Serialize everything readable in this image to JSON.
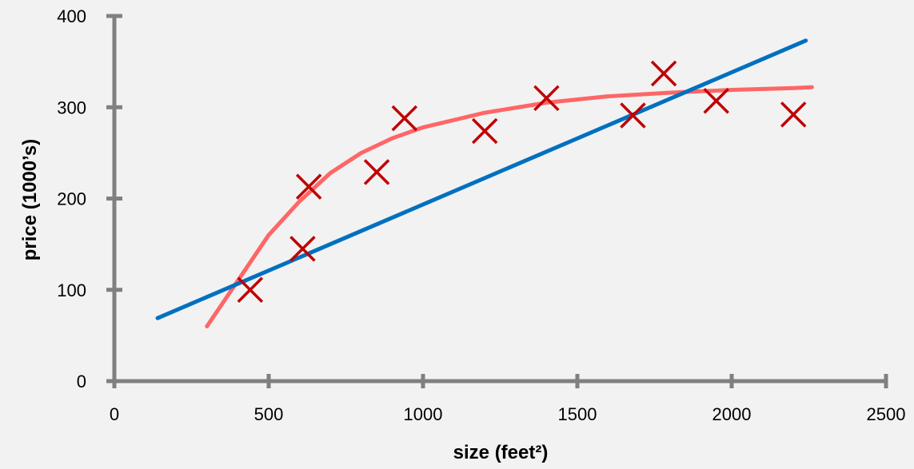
{
  "chart_data": {
    "type": "scatter",
    "title": "",
    "xlabel": "size (feet²)",
    "ylabel": "price (1000’s)",
    "xlim": [
      0,
      2500
    ],
    "ylim": [
      0,
      400
    ],
    "x_ticks": [
      "0",
      "500",
      "1000",
      "1500",
      "2000",
      "2500"
    ],
    "y_ticks": [
      "0",
      "100",
      "200",
      "300",
      "400"
    ],
    "grid": false,
    "legend": "none",
    "points": {
      "marker": "x",
      "color": "#c00000",
      "x": [
        440,
        610,
        630,
        850,
        940,
        1200,
        1400,
        1680,
        1780,
        1950,
        2200
      ],
      "y": [
        100,
        145,
        213,
        229,
        288,
        274,
        310,
        291,
        337,
        307,
        292
      ]
    },
    "linear_fit": {
      "color": "#0070c0",
      "x": [
        140,
        2240
      ],
      "y": [
        69,
        373
      ]
    },
    "curve_fit": {
      "color": "#ff6666",
      "x": [
        300,
        400,
        500,
        600,
        700,
        800,
        900,
        1000,
        1200,
        1400,
        1600,
        1800,
        2000,
        2200,
        2260
      ],
      "y": [
        60,
        110,
        160,
        197,
        228,
        250,
        266,
        278,
        294,
        305,
        312,
        316,
        319,
        321,
        322
      ]
    },
    "axis_color": "#808080"
  }
}
